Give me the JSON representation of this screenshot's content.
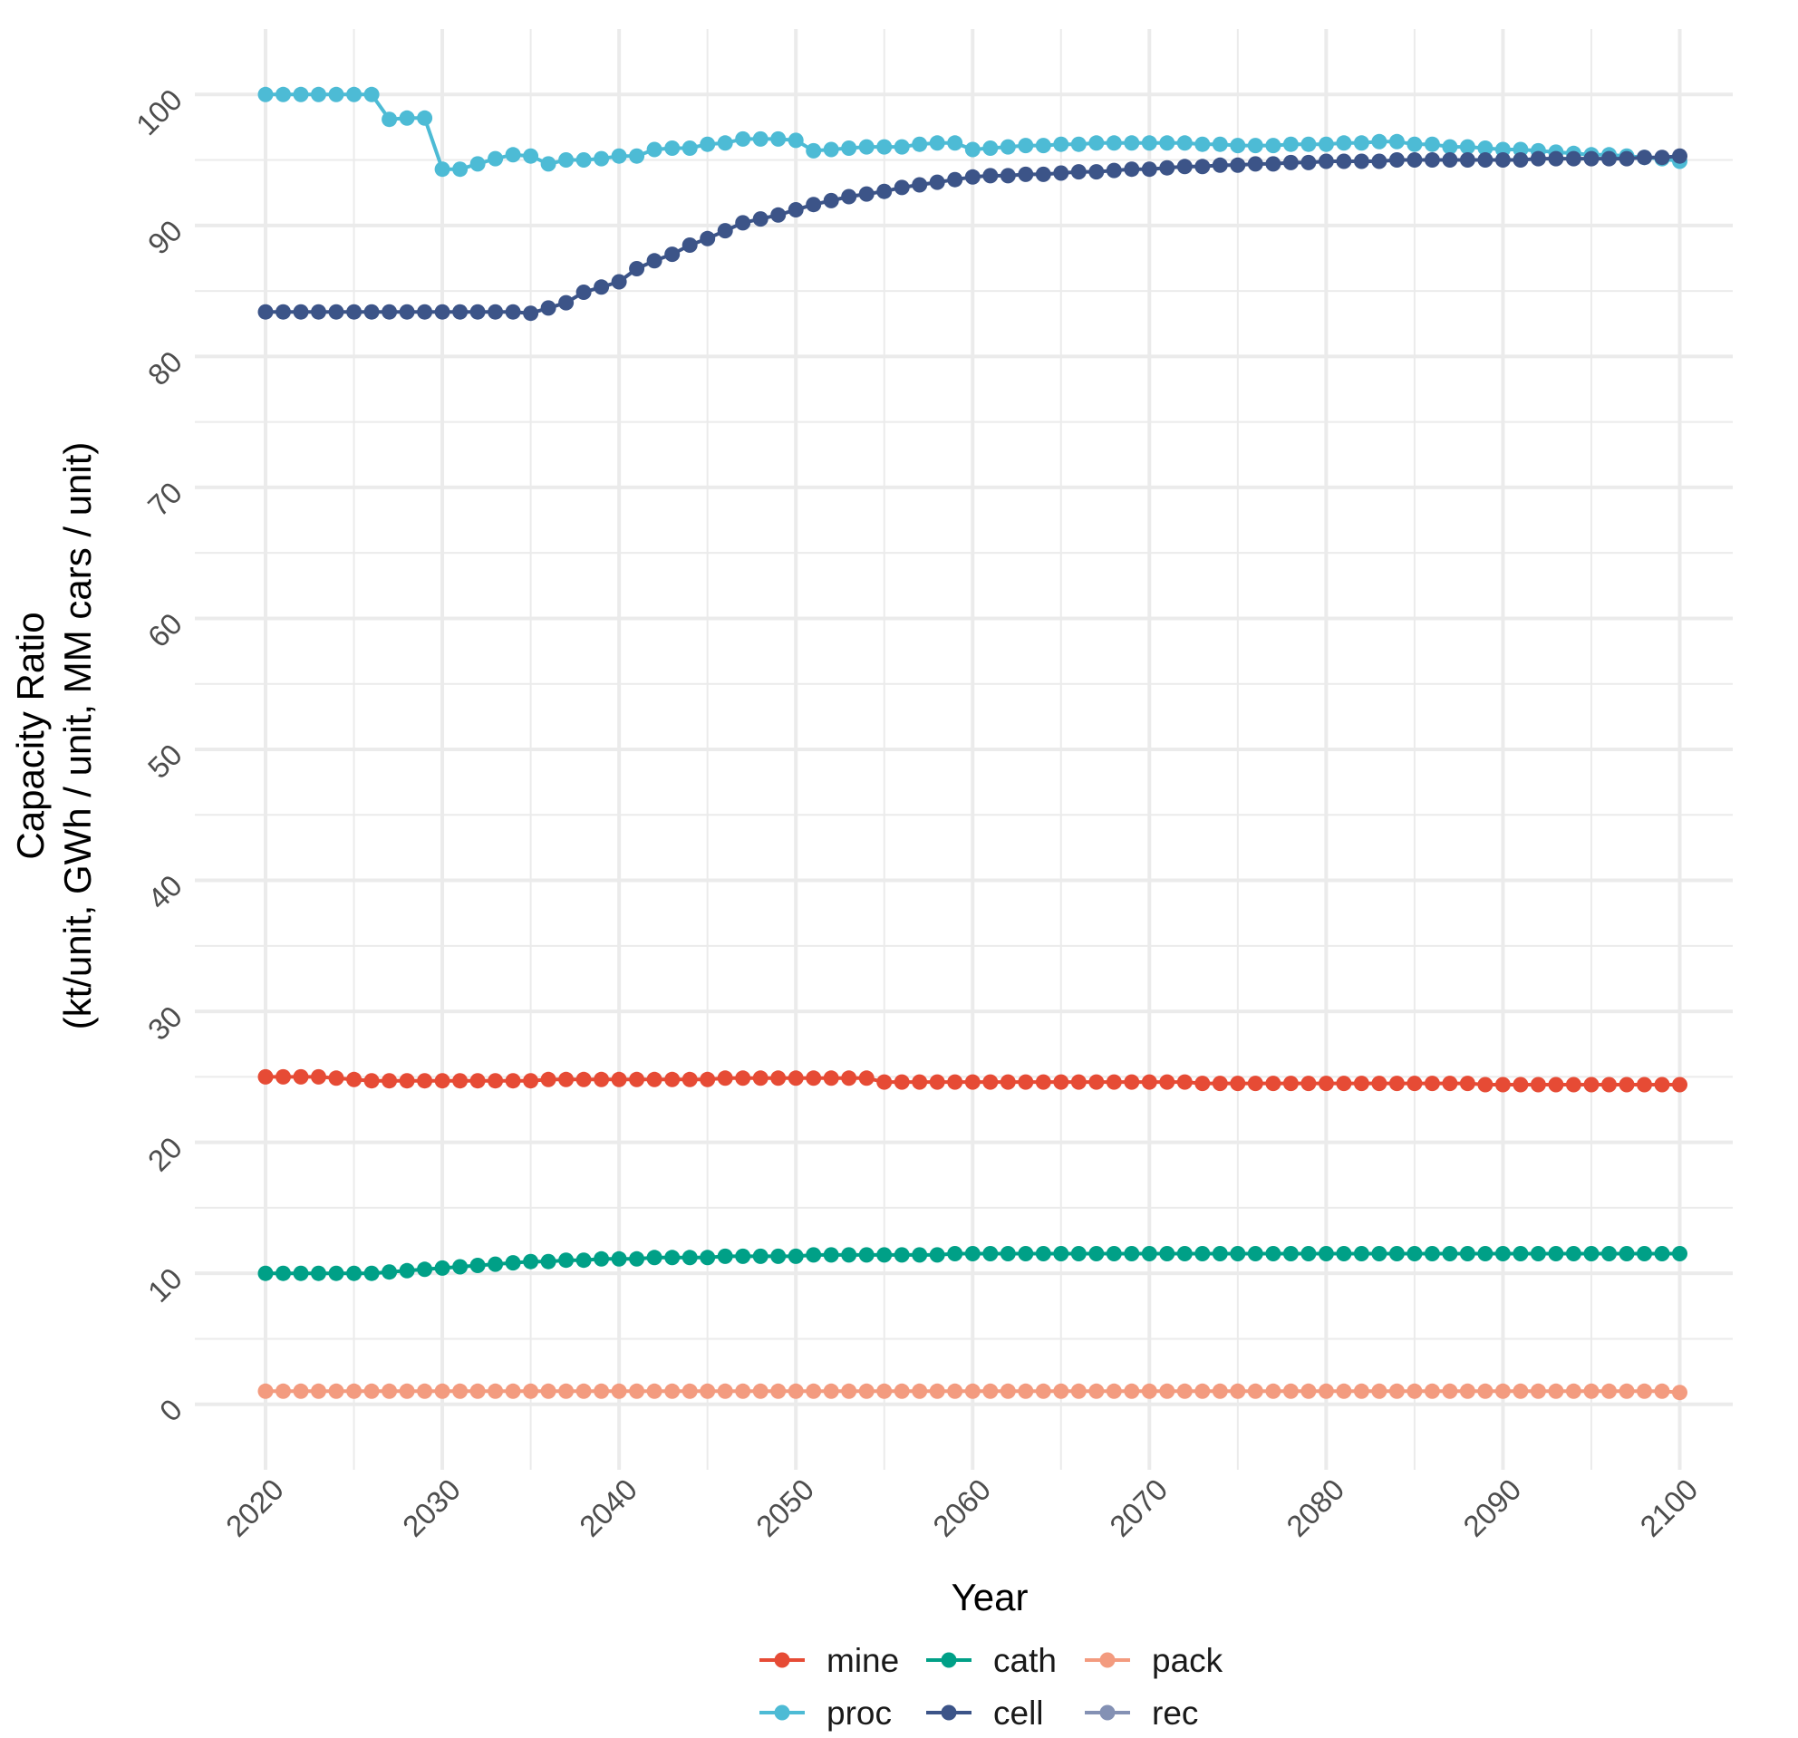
{
  "chart_data": {
    "type": "line",
    "title": "",
    "xlabel": "Year",
    "ylabel": [
      "Capacity Ratio",
      "(kt/unit, GWh / unit, MM cars / unit)"
    ],
    "xlim": [
      2016,
      2103
    ],
    "ylim": [
      -5,
      105
    ],
    "x_breaks": [
      2020,
      2030,
      2040,
      2050,
      2060,
      2070,
      2080,
      2090,
      2100
    ],
    "x_tick_labels": [
      "2020",
      "2030",
      "2040",
      "2050",
      "2060",
      "2070",
      "2080",
      "2090",
      "2100"
    ],
    "y_breaks": [
      0,
      10,
      20,
      30,
      40,
      50,
      60,
      70,
      80,
      90,
      100
    ],
    "y_tick_labels": [
      "0",
      "10",
      "20",
      "30",
      "40",
      "50",
      "60",
      "70",
      "80",
      "90",
      "100"
    ],
    "grid": true,
    "legend_position": "bottom",
    "x_start": 2020,
    "series": [
      {
        "name": "mine",
        "color": "#E64B35",
        "values": [
          25.0,
          25.0,
          25.0,
          25.0,
          24.9,
          24.8,
          24.7,
          24.7,
          24.7,
          24.7,
          24.7,
          24.7,
          24.7,
          24.7,
          24.7,
          24.7,
          24.8,
          24.8,
          24.8,
          24.8,
          24.8,
          24.8,
          24.8,
          24.8,
          24.8,
          24.8,
          24.9,
          24.9,
          24.9,
          24.9,
          24.9,
          24.9,
          24.9,
          24.9,
          24.9,
          24.6,
          24.6,
          24.6,
          24.6,
          24.6,
          24.6,
          24.6,
          24.6,
          24.6,
          24.6,
          24.6,
          24.6,
          24.6,
          24.6,
          24.6,
          24.6,
          24.6,
          24.6,
          24.5,
          24.5,
          24.5,
          24.5,
          24.5,
          24.5,
          24.5,
          24.5,
          24.5,
          24.5,
          24.5,
          24.5,
          24.5,
          24.5,
          24.5,
          24.5,
          24.4,
          24.4,
          24.4,
          24.4,
          24.4,
          24.4,
          24.4,
          24.4,
          24.4,
          24.4,
          24.4,
          24.4
        ]
      },
      {
        "name": "cath",
        "color": "#00A087",
        "values": [
          10.0,
          10.0,
          10.0,
          10.0,
          10.0,
          10.0,
          10.0,
          10.1,
          10.2,
          10.3,
          10.4,
          10.5,
          10.6,
          10.7,
          10.8,
          10.9,
          10.9,
          11.0,
          11.0,
          11.1,
          11.1,
          11.1,
          11.2,
          11.2,
          11.2,
          11.2,
          11.3,
          11.3,
          11.3,
          11.3,
          11.3,
          11.4,
          11.4,
          11.4,
          11.4,
          11.4,
          11.4,
          11.4,
          11.4,
          11.5,
          11.5,
          11.5,
          11.5,
          11.5,
          11.5,
          11.5,
          11.5,
          11.5,
          11.5,
          11.5,
          11.5,
          11.5,
          11.5,
          11.5,
          11.5,
          11.5,
          11.5,
          11.5,
          11.5,
          11.5,
          11.5,
          11.5,
          11.5,
          11.5,
          11.5,
          11.5,
          11.5,
          11.5,
          11.5,
          11.5,
          11.5,
          11.5,
          11.5,
          11.5,
          11.5,
          11.5,
          11.5,
          11.5,
          11.5,
          11.5,
          11.5
        ]
      },
      {
        "name": "pack",
        "color": "#F39B7F",
        "values": [
          1.0,
          1.0,
          1.0,
          1.0,
          1.0,
          1.0,
          1.0,
          1.0,
          1.0,
          1.0,
          1.0,
          1.0,
          1.0,
          1.0,
          1.0,
          1.0,
          1.0,
          1.0,
          1.0,
          1.0,
          1.0,
          1.0,
          1.0,
          1.0,
          1.0,
          1.0,
          1.0,
          1.0,
          1.0,
          1.0,
          1.0,
          1.0,
          1.0,
          1.0,
          1.0,
          1.0,
          1.0,
          1.0,
          1.0,
          1.0,
          1.0,
          1.0,
          1.0,
          1.0,
          1.0,
          1.0,
          1.0,
          1.0,
          1.0,
          1.0,
          1.0,
          1.0,
          1.0,
          1.0,
          1.0,
          1.0,
          1.0,
          1.0,
          1.0,
          1.0,
          1.0,
          1.0,
          1.0,
          1.0,
          1.0,
          1.0,
          1.0,
          1.0,
          1.0,
          1.0,
          1.0,
          1.0,
          1.0,
          1.0,
          1.0,
          1.0,
          1.0,
          1.0,
          1.0,
          1.0,
          0.9
        ]
      },
      {
        "name": "proc",
        "color": "#4DBBD5",
        "values": [
          100.0,
          100.0,
          100.0,
          100.0,
          100.0,
          100.0,
          100.0,
          98.1,
          98.2,
          98.2,
          94.3,
          94.3,
          94.7,
          95.1,
          95.4,
          95.3,
          94.7,
          95.0,
          95.0,
          95.1,
          95.3,
          95.3,
          95.8,
          95.9,
          95.9,
          96.2,
          96.3,
          96.6,
          96.6,
          96.6,
          96.5,
          95.7,
          95.8,
          95.9,
          96.0,
          96.0,
          96.0,
          96.2,
          96.3,
          96.3,
          95.8,
          95.9,
          96.0,
          96.1,
          96.1,
          96.2,
          96.2,
          96.3,
          96.3,
          96.3,
          96.3,
          96.3,
          96.3,
          96.2,
          96.2,
          96.1,
          96.1,
          96.1,
          96.2,
          96.2,
          96.2,
          96.3,
          96.3,
          96.4,
          96.4,
          96.2,
          96.2,
          96.0,
          96.0,
          95.9,
          95.8,
          95.8,
          95.7,
          95.6,
          95.5,
          95.4,
          95.4,
          95.3,
          95.2,
          95.1,
          94.9
        ]
      },
      {
        "name": "cell",
        "color": "#3C5488",
        "values": [
          83.4,
          83.4,
          83.4,
          83.4,
          83.4,
          83.4,
          83.4,
          83.4,
          83.4,
          83.4,
          83.4,
          83.4,
          83.4,
          83.4,
          83.4,
          83.3,
          83.7,
          84.1,
          84.9,
          85.3,
          85.7,
          86.7,
          87.3,
          87.8,
          88.5,
          89.0,
          89.6,
          90.2,
          90.5,
          90.8,
          91.2,
          91.6,
          91.9,
          92.2,
          92.4,
          92.6,
          92.9,
          93.1,
          93.3,
          93.5,
          93.7,
          93.8,
          93.8,
          93.9,
          93.9,
          94.0,
          94.1,
          94.1,
          94.2,
          94.3,
          94.3,
          94.4,
          94.5,
          94.5,
          94.6,
          94.6,
          94.7,
          94.7,
          94.8,
          94.8,
          94.9,
          94.9,
          94.9,
          94.9,
          95.0,
          95.0,
          95.0,
          95.0,
          95.0,
          95.0,
          95.0,
          95.0,
          95.1,
          95.1,
          95.1,
          95.1,
          95.1,
          95.1,
          95.2,
          95.2,
          95.3
        ]
      },
      {
        "name": "rec",
        "color": "#8491B4",
        "values": []
      }
    ],
    "legend_rows": [
      [
        "mine",
        "cath",
        "pack"
      ],
      [
        "proc",
        "cell",
        "rec"
      ]
    ]
  }
}
